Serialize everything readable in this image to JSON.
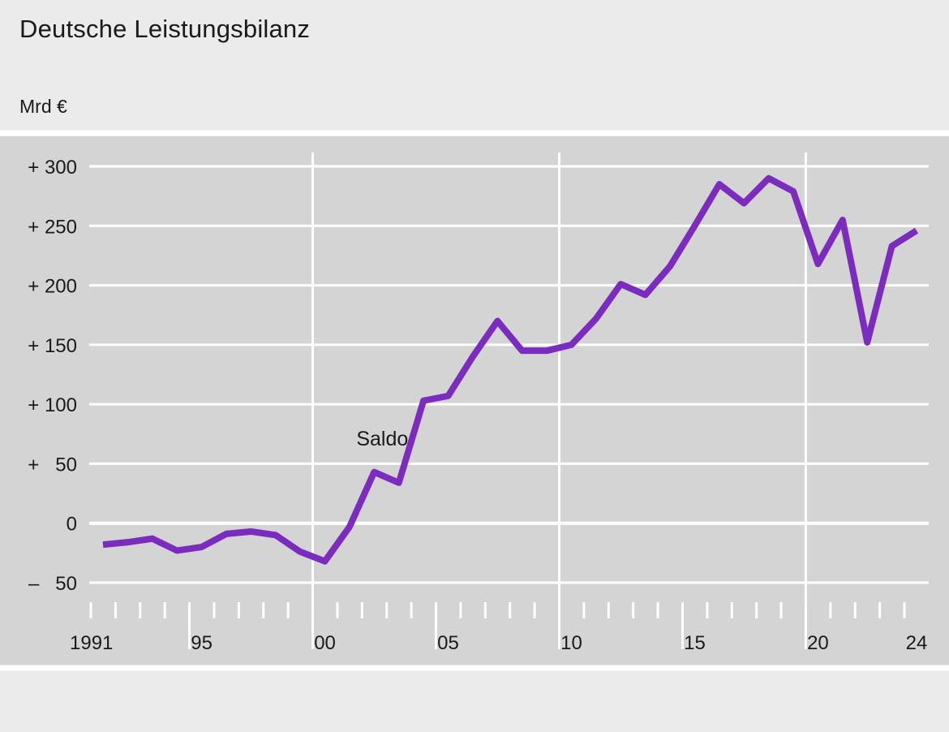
{
  "title": "Deutsche Leistungsbilanz",
  "unit": "Mrd €",
  "colors": {
    "line": "#7b2cbf",
    "plot_background": "#d4d4d4",
    "page_background": "#ebebeb",
    "grid": "#ffffff"
  },
  "chart_data": {
    "type": "line",
    "x": [
      1991,
      1992,
      1993,
      1994,
      1995,
      1996,
      1997,
      1998,
      1999,
      2000,
      2001,
      2002,
      2003,
      2004,
      2005,
      2006,
      2007,
      2008,
      2009,
      2010,
      2011,
      2012,
      2013,
      2014,
      2015,
      2016,
      2017,
      2018,
      2019,
      2020,
      2021,
      2022,
      2023,
      2024
    ],
    "series": [
      {
        "values": [
          -18,
          -16,
          -13,
          -23,
          -20,
          -9,
          -7,
          -10,
          -24,
          -32,
          -3,
          43,
          34,
          103,
          107,
          140,
          170,
          145,
          145,
          150,
          172,
          201,
          192,
          216,
          250,
          285,
          269,
          290,
          279,
          218,
          255,
          152,
          233,
          246
        ]
      }
    ],
    "ylim": [
      -50,
      300
    ],
    "xlim": [
      1991,
      2024
    ],
    "y_ticks": [
      {
        "value": 300,
        "label": "+ 300"
      },
      {
        "value": 250,
        "label": "+ 250"
      },
      {
        "value": 200,
        "label": "+ 200"
      },
      {
        "value": 150,
        "label": "+ 150"
      },
      {
        "value": 100,
        "label": "+ 100"
      },
      {
        "value": 50,
        "label": "+   50"
      },
      {
        "value": 0,
        "label": "0"
      },
      {
        "value": -50,
        "label": "–   50"
      }
    ],
    "x_tick_labels": [
      {
        "year": 1991,
        "label": "1991"
      },
      {
        "year": 1995,
        "label": "95"
      },
      {
        "year": 2000,
        "label": "00"
      },
      {
        "year": 2005,
        "label": "05"
      },
      {
        "year": 2010,
        "label": "10"
      },
      {
        "year": 2015,
        "label": "15"
      },
      {
        "year": 2020,
        "label": "20"
      },
      {
        "year": 2024,
        "label": "24"
      }
    ],
    "vertical_gridlines_years": [
      2000,
      2010,
      2020
    ],
    "annotations": [
      {
        "text": "Saldo",
        "x": 2002,
        "y": 72
      }
    ],
    "grid": true
  }
}
